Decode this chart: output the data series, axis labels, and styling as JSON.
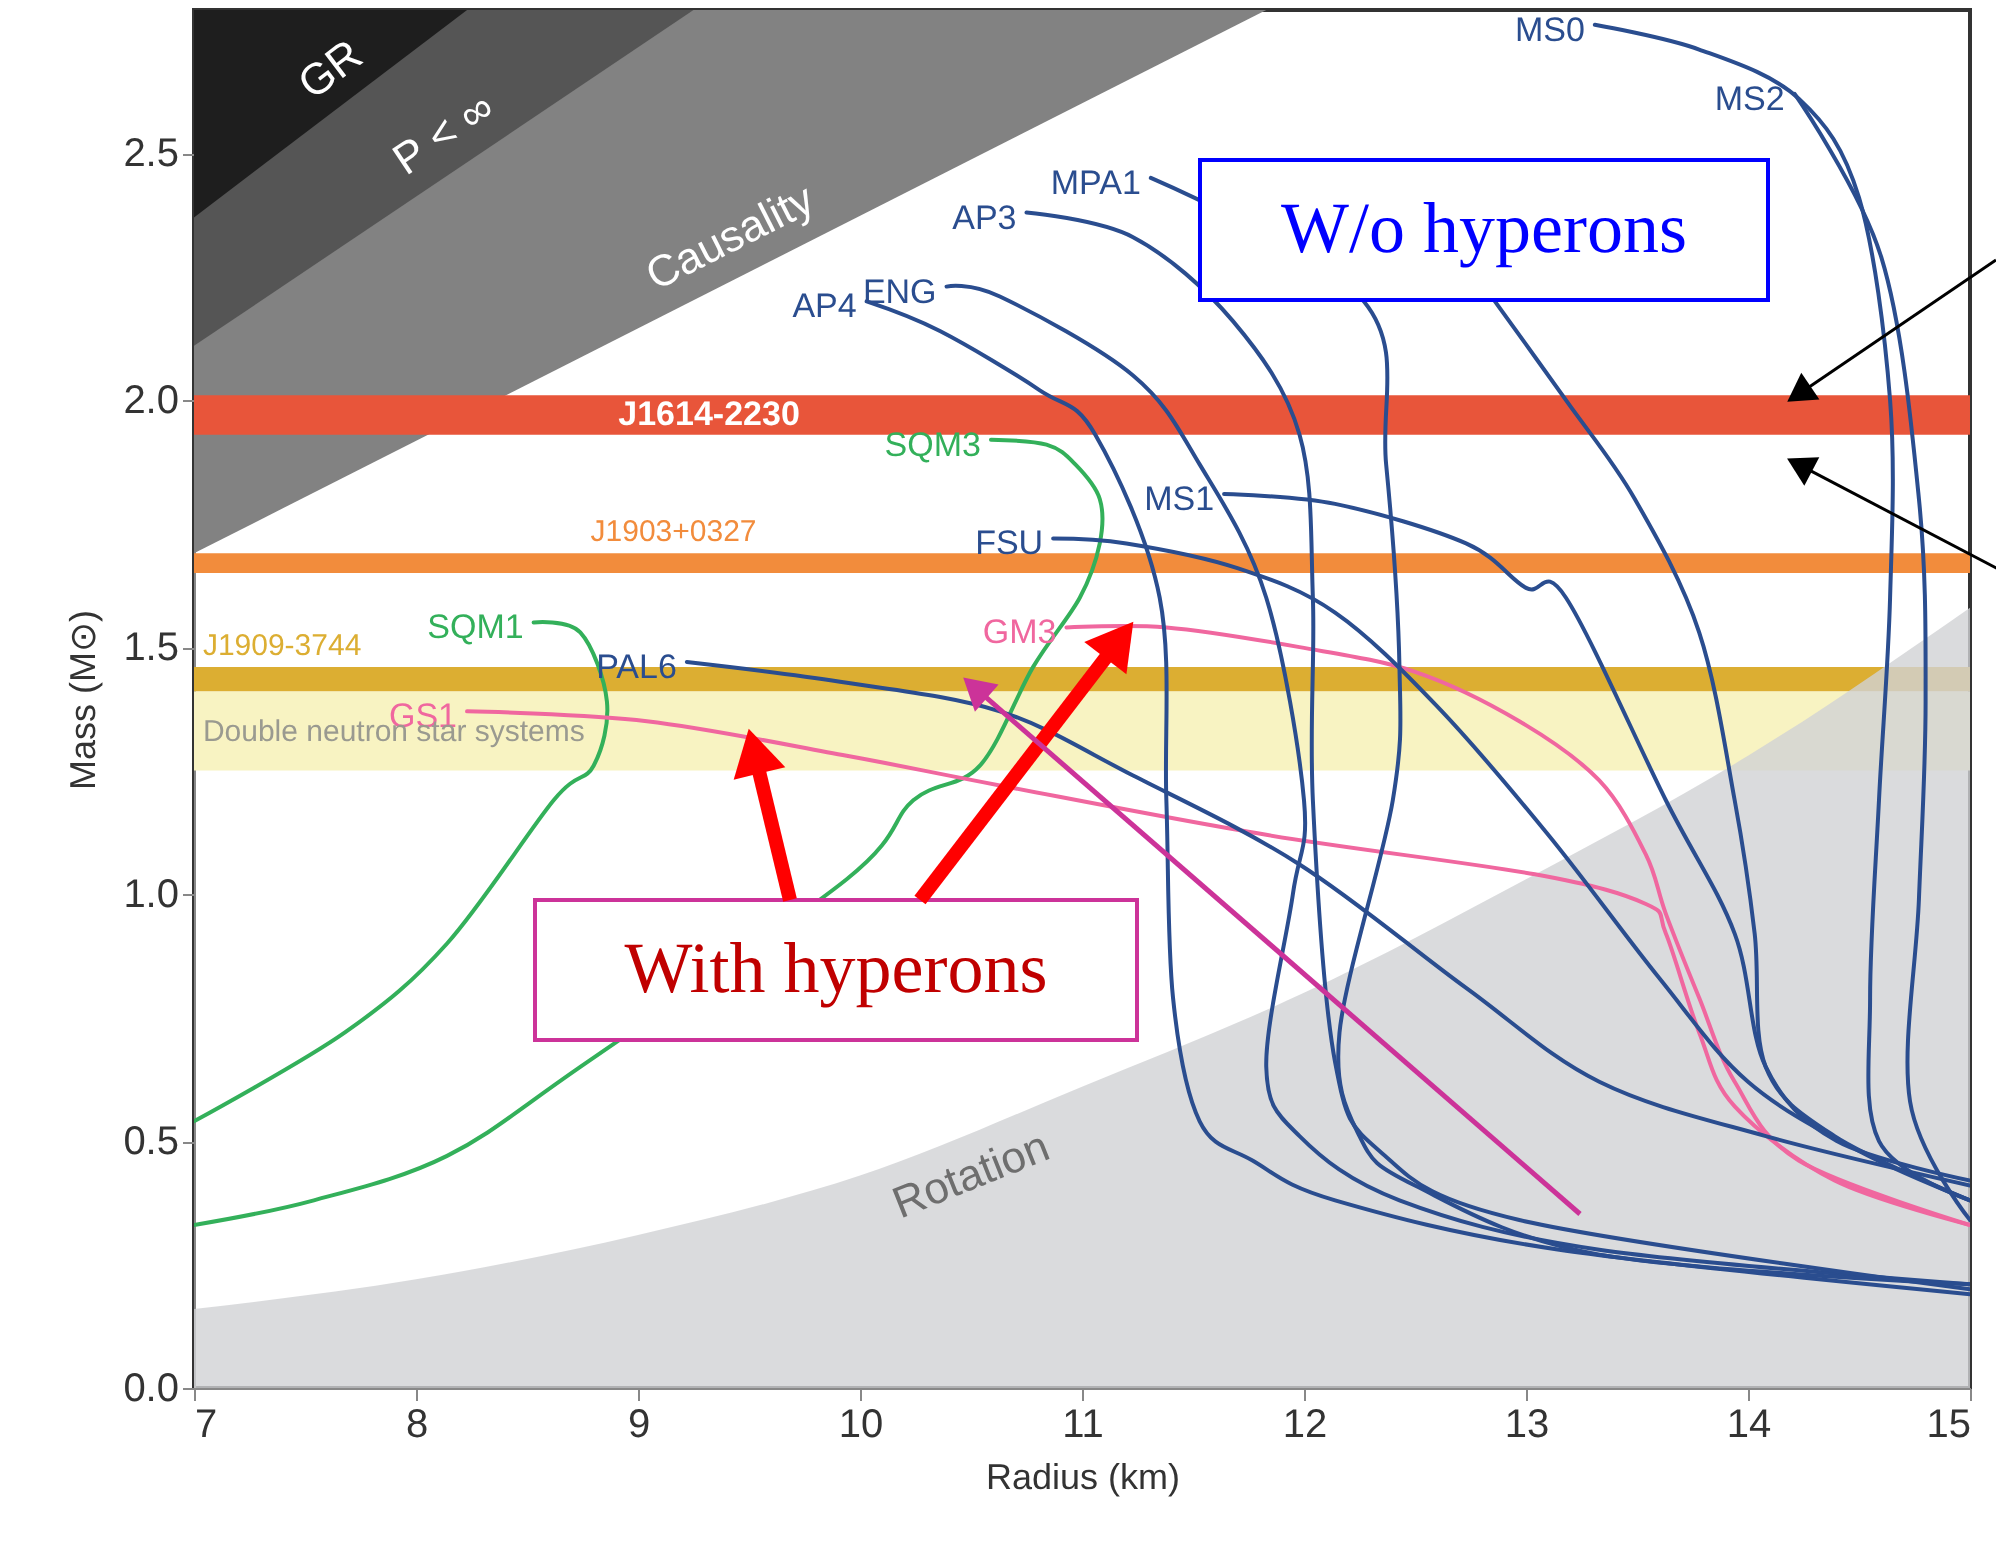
{
  "chart_data": {
    "type": "line",
    "xlabel": "Radius (km)",
    "ylabel": "Mass (M⊙)",
    "xlim": [
      7,
      15
    ],
    "ylim": [
      0,
      2.79
    ],
    "xticks": [
      7,
      8,
      9,
      10,
      11,
      12,
      13,
      14,
      15
    ],
    "yticks": [
      {
        "value": 0,
        "label": "0.0"
      },
      0.5,
      {
        "value": 1,
        "label": "1.0"
      },
      1.5,
      {
        "value": 2,
        "label": "2.0"
      },
      2.5
    ],
    "grid": false,
    "series": [
      {
        "type": "area",
        "name": "Causality",
        "color": "#828282",
        "x": [
          7,
          11.83
        ],
        "values": [
          1.69,
          2.79
        ]
      },
      {
        "type": "area",
        "name": "P < ∞",
        "color": "#555555",
        "x": [
          7,
          9.25
        ],
        "values": [
          2.11,
          2.79
        ]
      },
      {
        "type": "area",
        "name": "GR",
        "color": "#1e1e1e",
        "x": [
          7,
          8.23
        ],
        "values": [
          2.37,
          2.79
        ]
      },
      {
        "type": "area",
        "name": "Rotation",
        "color": "#d1d2d4",
        "x": [
          7,
          8,
          9,
          10,
          11,
          12,
          13,
          14,
          15
        ],
        "values": [
          0.16,
          0.22,
          0.31,
          0.43,
          0.61,
          0.8,
          1.03,
          1.28,
          1.58
        ]
      },
      {
        "name": "SQM1",
        "color": "#33b05a",
        "x": [
          8.53,
          8.74,
          8.86,
          8.8,
          8.62,
          8.14,
          7.68,
          7.0
        ],
        "values": [
          1.55,
          1.53,
          1.39,
          1.26,
          1.19,
          0.9,
          0.72,
          0.54
        ]
      },
      {
        "name": "SQM3",
        "color": "#33b05a",
        "x": [
          10.59,
          10.84,
          10.97,
          11.08,
          11.08,
          10.99,
          10.78,
          10.54,
          10.24,
          9.94,
          8.74,
          8.14,
          7.54,
          7.0
        ],
        "values": [
          1.92,
          1.91,
          1.87,
          1.8,
          1.71,
          1.6,
          1.46,
          1.26,
          1.19,
          1.03,
          0.65,
          0.47,
          0.38,
          0.33
        ]
      },
      {
        "name": "GS1",
        "color": "#f0679f",
        "x": [
          8.23,
          9.04,
          9.94,
          10.63,
          11.83,
          13.04,
          13.54,
          13.63,
          13.78,
          13.94,
          14.39,
          15
        ],
        "values": [
          1.37,
          1.35,
          1.28,
          1.22,
          1.12,
          1.04,
          0.98,
          0.92,
          0.72,
          0.57,
          0.42,
          0.33
        ]
      },
      {
        "name": "GM3",
        "color": "#f0679f",
        "x": [
          10.93,
          11.38,
          11.98,
          12.5,
          12.97,
          13.33,
          13.54,
          13.63,
          13.78,
          13.94,
          14.23,
          15
        ],
        "values": [
          1.54,
          1.54,
          1.5,
          1.45,
          1.35,
          1.23,
          1.08,
          0.96,
          0.79,
          0.62,
          0.46,
          0.33
        ]
      },
      {
        "name": "PAL6",
        "color": "#2a4d8f",
        "x": [
          9.22,
          9.91,
          10.63,
          11.23,
          11.98,
          12.73,
          13.33,
          14.08,
          15
        ],
        "values": [
          1.47,
          1.43,
          1.37,
          1.24,
          1.06,
          0.81,
          0.62,
          0.51,
          0.41
        ]
      },
      {
        "name": "AP4",
        "color": "#2a4d8f",
        "x": [
          10.03,
          10.36,
          10.81,
          11.06,
          11.35,
          11.38,
          11.41,
          11.53,
          11.77,
          12.14,
          13.15,
          15
        ],
        "values": [
          2.2,
          2.14,
          2.02,
          1.93,
          1.6,
          1.19,
          0.79,
          0.54,
          0.46,
          0.38,
          0.28,
          0.19
        ]
      },
      {
        "name": "ENG",
        "color": "#2a4d8f",
        "x": [
          10.39,
          10.63,
          11.23,
          11.53,
          11.83,
          12.0,
          11.95,
          11.83,
          11.98,
          12.43,
          13.33,
          15
        ],
        "values": [
          2.23,
          2.21,
          2.05,
          1.87,
          1.6,
          1.19,
          1.0,
          0.65,
          0.51,
          0.38,
          0.28,
          0.21
        ]
      },
      {
        "name": "AP3",
        "color": "#2a4d8f",
        "x": [
          10.75,
          11.23,
          11.68,
          11.98,
          12.04,
          12.04,
          12.14,
          12.34,
          12.97,
          15
        ],
        "values": [
          2.38,
          2.33,
          2.16,
          1.93,
          1.6,
          1.19,
          0.66,
          0.48,
          0.34,
          0.2
        ]
      },
      {
        "name": "MPA1",
        "color": "#2a4d8f",
        "x": [
          11.31,
          12.27,
          12.37,
          12.43,
          12.4,
          12.16,
          12.25,
          12.5,
          13.33,
          15
        ],
        "values": [
          2.45,
          2.2,
          1.87,
          1.46,
          1.19,
          0.72,
          0.51,
          0.41,
          0.27,
          0.21
        ]
      },
      {
        "name": "FSU",
        "color": "#2a4d8f",
        "x": [
          10.87,
          11.2,
          11.7,
          12.14,
          12.6,
          13.1,
          13.6,
          14.0,
          14.5,
          15
        ],
        "values": [
          1.72,
          1.71,
          1.66,
          1.57,
          1.38,
          1.12,
          0.83,
          0.62,
          0.48,
          0.38
        ]
      },
      {
        "name": "MS1",
        "color": "#2a4d8f",
        "x": [
          11.64,
          12.14,
          12.73,
          13.0,
          13.18,
          13.63,
          13.94,
          14.08,
          14.4,
          15
        ],
        "values": [
          1.81,
          1.79,
          1.71,
          1.62,
          1.6,
          1.19,
          0.92,
          0.65,
          0.5,
          0.42
        ]
      },
      {
        "color": "#2a4d8f",
        "x": [
          12.86,
          13.18,
          13.49,
          13.78,
          13.94,
          14.03,
          14.08,
          14.39,
          15
        ],
        "values": [
          2.2,
          2.0,
          1.8,
          1.53,
          1.19,
          0.92,
          0.65,
          0.51,
          0.38
        ]
      },
      {
        "name": "MS0",
        "color": "#2a4d8f",
        "x": [
          13.31,
          13.78,
          14.23,
          14.5,
          14.64,
          14.64,
          14.59,
          14.55,
          14.59,
          15
        ],
        "values": [
          2.76,
          2.71,
          2.61,
          2.41,
          2.0,
          1.6,
          1.19,
          0.79,
          0.5,
          0.38
        ]
      },
      {
        "name": "MS2",
        "color": "#2a4d8f",
        "x": [
          14.21,
          14.6,
          14.77,
          14.8,
          14.77,
          14.73,
          15
        ],
        "values": [
          2.62,
          2.29,
          1.8,
          1.39,
          0.99,
          0.58,
          0.34
        ]
      }
    ],
    "bands": [
      {
        "axis": "y",
        "from": 1.93,
        "to": 2.01,
        "label": "J1614-2230",
        "color": "#e8553a"
      },
      {
        "axis": "y",
        "from": 1.65,
        "to": 1.69,
        "label": "J1903+0327",
        "color": "#f28c3c"
      },
      {
        "axis": "y",
        "from": 1.41,
        "to": 1.46,
        "label": "J1909-3744",
        "color": "#dcae32"
      },
      {
        "axis": "y",
        "from": 1.25,
        "to": 1.41,
        "label": "Double neutron star systems",
        "color": "#f8f3c2"
      }
    ],
    "annotations": [
      "W/o hyperons",
      "With hyperons"
    ]
  }
}
